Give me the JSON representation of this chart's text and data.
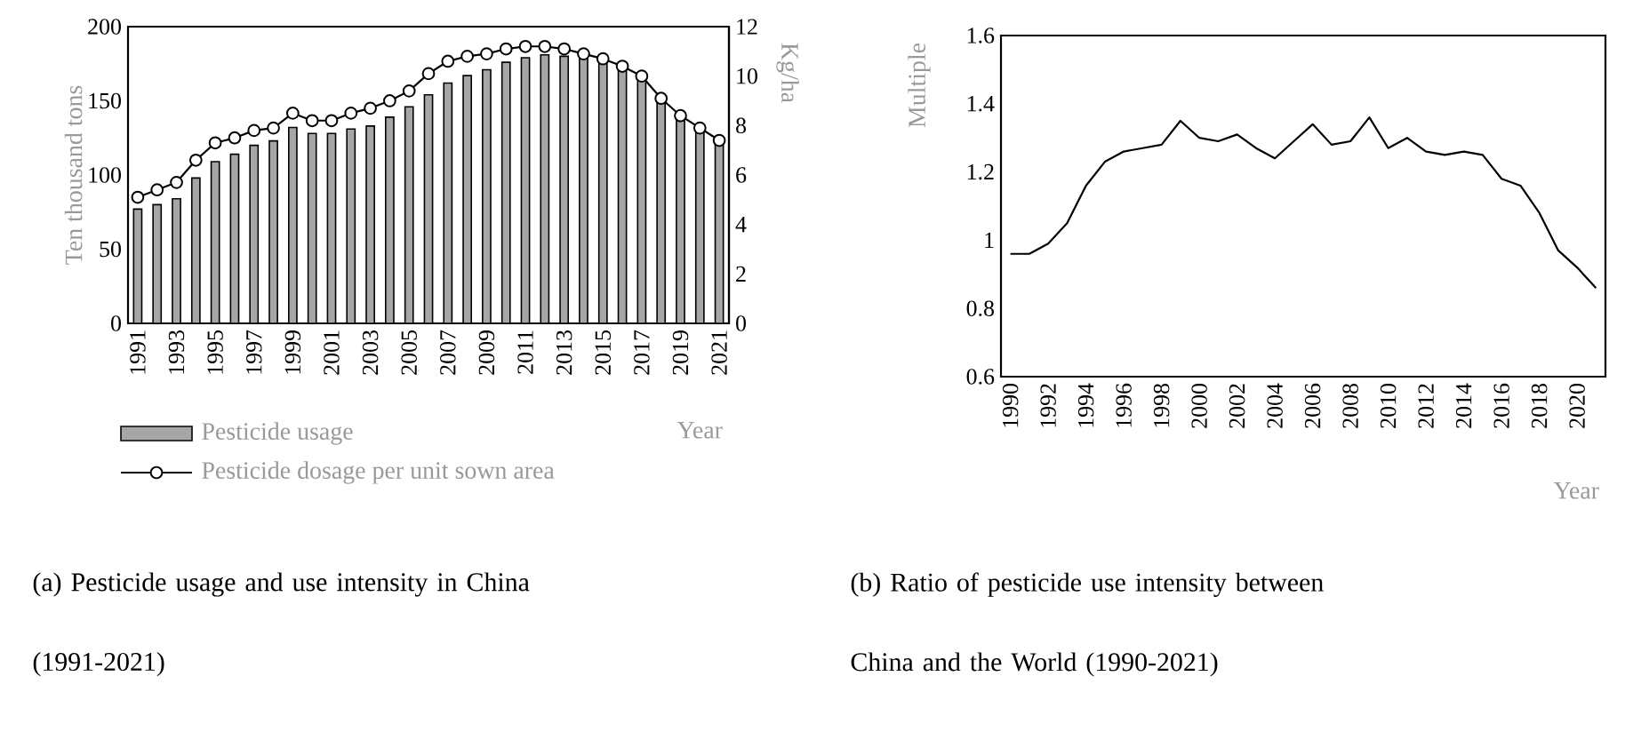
{
  "chart_data": [
    {
      "type": "bar",
      "categories": [
        "1991",
        null,
        "1993",
        null,
        "1995",
        null,
        "1997",
        null,
        "1999",
        null,
        "2001",
        null,
        "2003",
        null,
        "2005",
        null,
        "2007",
        null,
        "2009",
        null,
        "2011",
        null,
        "2013",
        null,
        "2015",
        null,
        "2017",
        null,
        "2019",
        null,
        "2021"
      ],
      "series": [
        {
          "name": "Pesticide usage",
          "type": "bar",
          "color": "#a6a6a6",
          "values": [
            77,
            80,
            84,
            98,
            109,
            114,
            120,
            123,
            132,
            128,
            128,
            131,
            133,
            139,
            146,
            154,
            162,
            167,
            171,
            176,
            179,
            181,
            180,
            181,
            178,
            174,
            166,
            150,
            139,
            131,
            124
          ]
        },
        {
          "name": "Pesticide dosage per unit sown area",
          "type": "line",
          "axis": "y2",
          "marker": "circle",
          "color": "#000000",
          "values": [
            5.1,
            5.4,
            5.7,
            6.6,
            7.3,
            7.5,
            7.8,
            7.9,
            8.5,
            8.2,
            8.2,
            8.5,
            8.7,
            9.0,
            9.4,
            10.1,
            10.6,
            10.8,
            10.9,
            11.1,
            11.2,
            11.2,
            11.1,
            10.9,
            10.7,
            10.4,
            10.0,
            9.1,
            8.4,
            7.9,
            7.4
          ]
        }
      ],
      "ylabel": "Ten thousand tons",
      "y2label": "Kg/ha",
      "xlabel": "Year",
      "ylim": [
        0,
        200
      ],
      "yticks": [
        0,
        50,
        100,
        150,
        200
      ],
      "y2lim": [
        0,
        12
      ],
      "y2ticks": [
        0,
        2,
        4,
        6,
        8,
        10,
        12
      ],
      "legend": "bottom",
      "annotations": [
        "(a) Pesticide usage and use intensity in China (1991-2021)"
      ]
    },
    {
      "type": "line",
      "x": [
        1990,
        1991,
        1992,
        1993,
        1994,
        1995,
        1996,
        1997,
        1998,
        1999,
        2000,
        2001,
        2002,
        2003,
        2004,
        2005,
        2006,
        2007,
        2008,
        2009,
        2010,
        2011,
        2012,
        2013,
        2014,
        2015,
        2016,
        2017,
        2018,
        2019,
        2020,
        2021
      ],
      "values": [
        0.96,
        0.96,
        0.99,
        1.05,
        1.16,
        1.23,
        1.26,
        1.27,
        1.28,
        1.35,
        1.3,
        1.29,
        1.31,
        1.27,
        1.24,
        1.29,
        1.34,
        1.28,
        1.29,
        1.36,
        1.27,
        1.3,
        1.26,
        1.25,
        1.26,
        1.25,
        1.18,
        1.16,
        1.08,
        0.97,
        0.92,
        0.86
      ],
      "color": "#000000",
      "ylabel": "Multiple",
      "xlabel": "Year",
      "xlim": [
        1989.5,
        2021.5
      ],
      "xticks": [
        1990,
        1992,
        1994,
        1996,
        1998,
        2000,
        2002,
        2004,
        2006,
        2008,
        2010,
        2012,
        2014,
        2016,
        2018,
        2020
      ],
      "ylim": [
        0.6,
        1.6
      ],
      "yticks": [
        0.6,
        0.8,
        1,
        1.2,
        1.4,
        1.6
      ],
      "annotations": [
        "(b) Ratio of pesticide use intensity between China and the World (1990-2021)"
      ]
    }
  ]
}
